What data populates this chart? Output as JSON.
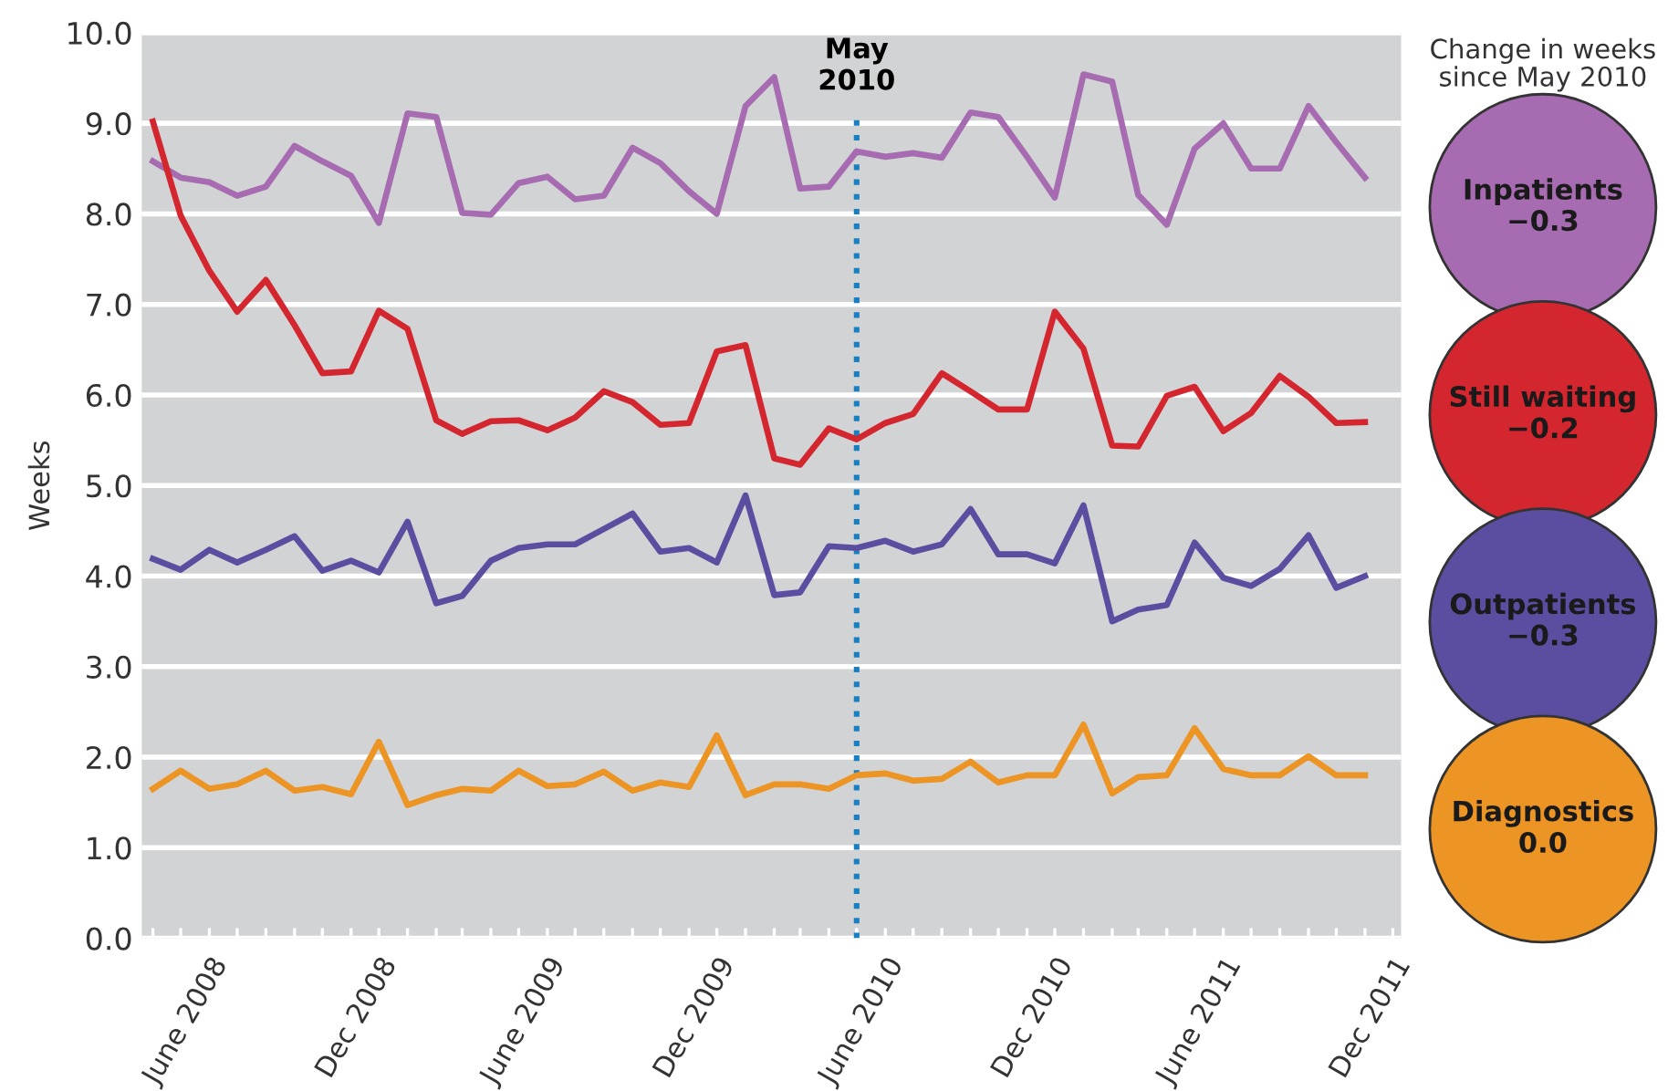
{
  "chart_data": {
    "type": "line",
    "ylabel": "Weeks",
    "legend_title": "Change in weeks since May 2010",
    "legend": "right",
    "grid": "y",
    "x": [
      "2008-04",
      "2008-05",
      "2008-06",
      "2008-07",
      "2008-08",
      "2008-09",
      "2008-10",
      "2008-11",
      "2008-12",
      "2009-01",
      "2009-02",
      "2009-03",
      "2009-04",
      "2009-05",
      "2009-06",
      "2009-07",
      "2009-08",
      "2009-09",
      "2009-10",
      "2009-11",
      "2009-12",
      "2010-01",
      "2010-02",
      "2010-03",
      "2010-04",
      "2010-05",
      "2010-06",
      "2010-07",
      "2010-08",
      "2010-09",
      "2010-10",
      "2010-11",
      "2010-12",
      "2011-01",
      "2011-02",
      "2011-03",
      "2011-04",
      "2011-05",
      "2011-06",
      "2011-07",
      "2011-08",
      "2011-09",
      "2011-10",
      "2011-11"
    ],
    "series": [
      {
        "name": "Inpatients",
        "color": "#a66bb0",
        "values": [
          8.58,
          8.4,
          8.35,
          8.2,
          8.3,
          8.75,
          8.58,
          8.42,
          7.9,
          9.11,
          9.07,
          8.01,
          7.99,
          8.34,
          8.41,
          8.16,
          8.2,
          8.73,
          8.56,
          8.25,
          8.0,
          9.19,
          9.51,
          8.28,
          8.3,
          8.69,
          8.63,
          8.67,
          8.62,
          9.12,
          9.07,
          8.63,
          8.18,
          9.54,
          9.46,
          8.21,
          7.88,
          8.72,
          9.0,
          8.5,
          8.5,
          9.19,
          8.79,
          8.4
        ]
      },
      {
        "name": "Still waiting",
        "color": "#d4262e",
        "values": [
          9.02,
          7.98,
          7.37,
          6.92,
          7.27,
          6.77,
          6.24,
          6.26,
          6.93,
          6.73,
          5.72,
          5.57,
          5.71,
          5.72,
          5.61,
          5.75,
          6.04,
          5.92,
          5.67,
          5.69,
          6.48,
          6.55,
          5.3,
          5.23,
          5.63,
          5.51,
          5.69,
          5.79,
          6.24,
          6.04,
          5.84,
          5.84,
          6.92,
          6.51,
          5.44,
          5.43,
          5.99,
          6.09,
          5.6,
          5.8,
          6.21,
          5.98,
          5.69,
          5.7
        ]
      },
      {
        "name": "Outpatients",
        "color": "#5b4ea1",
        "values": [
          4.19,
          4.07,
          4.29,
          4.15,
          4.29,
          4.44,
          4.06,
          4.17,
          4.04,
          4.6,
          3.7,
          3.78,
          4.17,
          4.31,
          4.35,
          4.35,
          4.52,
          4.69,
          4.27,
          4.31,
          4.15,
          4.89,
          3.79,
          3.82,
          4.33,
          4.31,
          4.39,
          4.27,
          4.35,
          4.74,
          4.24,
          4.24,
          4.14,
          4.78,
          3.5,
          3.63,
          3.68,
          4.37,
          3.98,
          3.89,
          4.08,
          4.45,
          3.87,
          4.0
        ]
      },
      {
        "name": "Diagnostics",
        "color": "#ec9424",
        "values": [
          1.65,
          1.85,
          1.65,
          1.7,
          1.85,
          1.63,
          1.67,
          1.59,
          2.17,
          1.47,
          1.58,
          1.65,
          1.63,
          1.85,
          1.68,
          1.7,
          1.84,
          1.63,
          1.72,
          1.67,
          2.24,
          1.58,
          1.7,
          1.7,
          1.65,
          1.8,
          1.82,
          1.74,
          1.76,
          1.95,
          1.72,
          1.8,
          1.8,
          2.36,
          1.6,
          1.78,
          1.8,
          2.32,
          1.87,
          1.8,
          1.8,
          2.01,
          1.8,
          1.8
        ]
      }
    ],
    "annotations": [
      "−0.3",
      "−0.2",
      "−0.3",
      "0.0"
    ],
    "ref_lines": [
      {
        "axis": "x",
        "value": "2010-05",
        "label": "May 2010",
        "color": "#1a7fc1",
        "line_style": "dotted"
      }
    ],
    "xlim": [
      "2008-03-20",
      "2011-12-10"
    ],
    "xticks": [
      {
        "value": "2008-04",
        "label": null
      },
      {
        "value": "2008-05",
        "label": null
      },
      {
        "value": "2008-06",
        "label": "June 2008"
      },
      {
        "value": "2008-07",
        "label": null
      },
      {
        "value": "2008-08",
        "label": null
      },
      {
        "value": "2008-09",
        "label": null
      },
      {
        "value": "2008-10",
        "label": null
      },
      {
        "value": "2008-11",
        "label": null
      },
      {
        "value": "2008-12",
        "label": "Dec 2008"
      },
      {
        "value": "2009-01",
        "label": null
      },
      {
        "value": "2009-02",
        "label": null
      },
      {
        "value": "2009-03",
        "label": null
      },
      {
        "value": "2009-04",
        "label": null
      },
      {
        "value": "2009-05",
        "label": null
      },
      {
        "value": "2009-06",
        "label": "June 2009"
      },
      {
        "value": "2009-07",
        "label": null
      },
      {
        "value": "2009-08",
        "label": null
      },
      {
        "value": "2009-09",
        "label": null
      },
      {
        "value": "2009-10",
        "label": null
      },
      {
        "value": "2009-11",
        "label": null
      },
      {
        "value": "2009-12",
        "label": "Dec 2009"
      },
      {
        "value": "2010-01",
        "label": null
      },
      {
        "value": "2010-02",
        "label": null
      },
      {
        "value": "2010-03",
        "label": null
      },
      {
        "value": "2010-04",
        "label": null
      },
      {
        "value": "2010-05",
        "label": null
      },
      {
        "value": "2010-06",
        "label": "June 2010"
      },
      {
        "value": "2010-07",
        "label": null
      },
      {
        "value": "2010-08",
        "label": null
      },
      {
        "value": "2010-09",
        "label": null
      },
      {
        "value": "2010-10",
        "label": null
      },
      {
        "value": "2010-11",
        "label": null
      },
      {
        "value": "2010-12",
        "label": "Dec 2010"
      },
      {
        "value": "2011-01",
        "label": null
      },
      {
        "value": "2011-02",
        "label": null
      },
      {
        "value": "2011-03",
        "label": null
      },
      {
        "value": "2011-04",
        "label": null
      },
      {
        "value": "2011-05",
        "label": null
      },
      {
        "value": "2011-06",
        "label": "June 2011"
      },
      {
        "value": "2011-07",
        "label": null
      },
      {
        "value": "2011-08",
        "label": null
      },
      {
        "value": "2011-09",
        "label": null
      },
      {
        "value": "2011-10",
        "label": null
      },
      {
        "value": "2011-11",
        "label": null
      },
      {
        "value": "2011-12",
        "label": "Dec 2011"
      }
    ],
    "ylim": [
      0,
      10
    ],
    "yticks": [
      {
        "value": 0,
        "label": "0.0"
      },
      {
        "value": 1,
        "label": "1.0"
      },
      {
        "value": 2,
        "label": "2.0"
      },
      {
        "value": 3,
        "label": "3.0"
      },
      {
        "value": 4,
        "label": "4.0"
      },
      {
        "value": 5,
        "label": "5.0"
      },
      {
        "value": 6,
        "label": "6.0"
      },
      {
        "value": 7,
        "label": "7.0"
      },
      {
        "value": 8,
        "label": "8.0"
      },
      {
        "value": 9,
        "label": "9.0"
      },
      {
        "value": 10,
        "label": "10.0"
      }
    ]
  }
}
